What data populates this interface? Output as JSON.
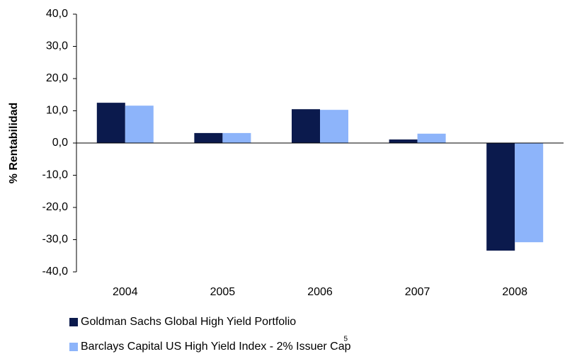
{
  "chart_data": {
    "type": "bar",
    "y_label": "% Rentabilidad",
    "categories": [
      "2004",
      "2005",
      "2006",
      "2007",
      "2008"
    ],
    "series": [
      {
        "name": "Goldman Sachs Global High Yield Portfolio",
        "color": "#0b1a4d",
        "values": [
          12.5,
          3.1,
          10.5,
          1.1,
          -33.4
        ]
      },
      {
        "name": "Barclays Capital US High Yield Index - 2% Issuer Cap",
        "color": "#8db4fa",
        "values": [
          11.6,
          3.1,
          10.3,
          2.9,
          -30.8
        ]
      }
    ],
    "legend_note": "5",
    "ylim": [
      -40,
      40
    ],
    "yticks": [
      {
        "value": -40,
        "label": "-40,0"
      },
      {
        "value": -30,
        "label": "-30,0"
      },
      {
        "value": -20,
        "label": "-20,0"
      },
      {
        "value": -10,
        "label": "-10,0"
      },
      {
        "value": 0,
        "label": "0,0"
      },
      {
        "value": 10,
        "label": "10,0"
      },
      {
        "value": 20,
        "label": "20,0"
      },
      {
        "value": 30,
        "label": "30,0"
      },
      {
        "value": 40,
        "label": "40,0"
      }
    ],
    "grid": false,
    "legend": "bottom"
  }
}
